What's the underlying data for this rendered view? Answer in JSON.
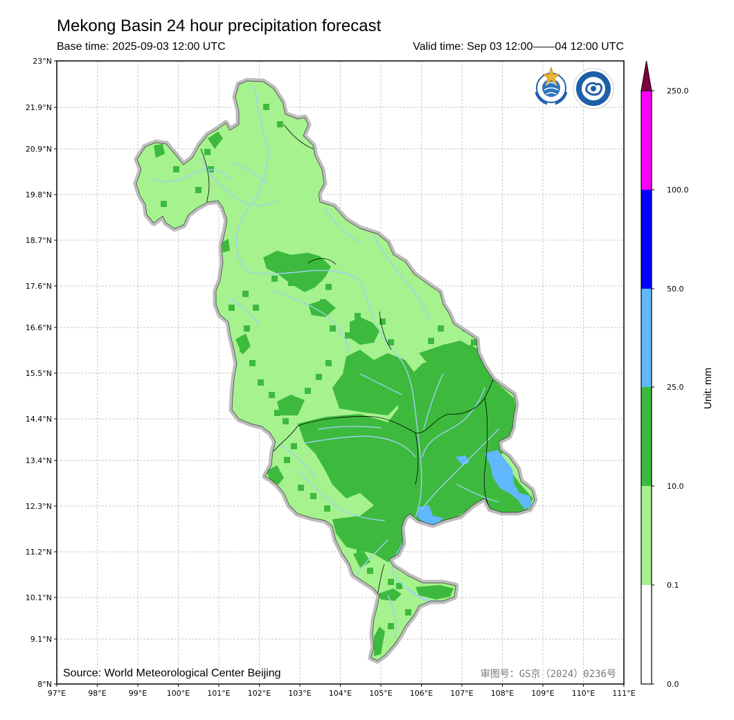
{
  "header": {
    "title": "Mekong Basin 24 hour precipitation forecast",
    "base_time": "Base time: 2025-09-03 12:00 UTC",
    "valid_time": "Valid time: Sep 03 12:00——04 12:00 UTC"
  },
  "map": {
    "lat_labels": [
      "23°N",
      "21.9°N",
      "20.9°N",
      "19.8°N",
      "18.7°N",
      "17.6°N",
      "16.6°N",
      "15.5°N",
      "14.4°N",
      "13.4°N",
      "12.3°N",
      "11.2°N",
      "10.1°N",
      "9.1°N",
      "8°N"
    ],
    "lon_labels": [
      "97°E",
      "98°E",
      "99°E",
      "100°E",
      "101°E",
      "102°E",
      "103°E",
      "104°E",
      "105°E",
      "106°E",
      "107°E",
      "108°E",
      "109°E",
      "110°E",
      "111°E"
    ],
    "lat_range": [
      8,
      23
    ],
    "lon_range": [
      97,
      111
    ],
    "source_text": "Source: World Meteorological Center Beijing",
    "approval_text": "审图号：GS京（2024）0236号",
    "logos": [
      "wmo-logo",
      "cma-logo"
    ],
    "region": "Mekong Basin"
  },
  "colorbar": {
    "unit_label": "Unit: mm",
    "tick_labels": [
      "0.0",
      "0.1",
      "10.0",
      "25.0",
      "50.0",
      "100.0",
      "250.0"
    ],
    "colors": [
      "#ffffff",
      "#a6f28f",
      "#3dba3d",
      "#61b8ff",
      "#0000ff",
      "#fa00fa",
      "#800040"
    ]
  },
  "colors": {
    "light_green": "#a6f28f",
    "green": "#3dba3d",
    "light_blue": "#61b8ff",
    "river": "#9fd0f5",
    "halo": "#bdbdbd",
    "grid": "#b5b5b5"
  }
}
